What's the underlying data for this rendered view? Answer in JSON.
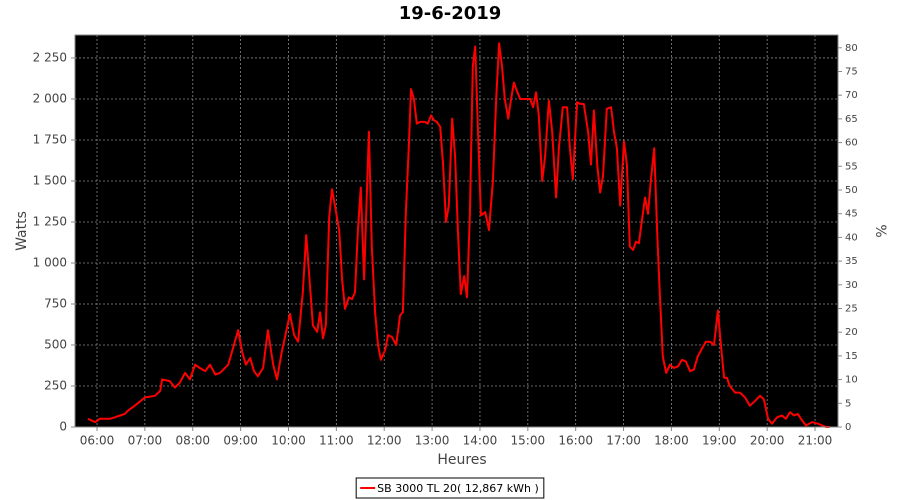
{
  "chart_data": {
    "type": "line",
    "title": "19-6-2019",
    "x_label": "Heures",
    "y_label": "Watts",
    "y2_label": "%",
    "xlim": [
      5.54,
      21.48
    ],
    "ylim": [
      0,
      2390
    ],
    "y2lim": [
      0,
      82.7
    ],
    "xticks": [
      {
        "value": 6,
        "label": "06:00"
      },
      {
        "value": 7,
        "label": "07:00"
      },
      {
        "value": 8,
        "label": "08:00"
      },
      {
        "value": 9,
        "label": "09:00"
      },
      {
        "value": 10,
        "label": "10:00"
      },
      {
        "value": 11,
        "label": "11:00"
      },
      {
        "value": 12,
        "label": "12:00"
      },
      {
        "value": 13,
        "label": "13:00"
      },
      {
        "value": 14,
        "label": "14:00"
      },
      {
        "value": 15,
        "label": "15:00"
      },
      {
        "value": 16,
        "label": "16:00"
      },
      {
        "value": 17,
        "label": "17:00"
      },
      {
        "value": 18,
        "label": "18:00"
      },
      {
        "value": 19,
        "label": "19:00"
      },
      {
        "value": 20,
        "label": "20:00"
      },
      {
        "value": 21,
        "label": "21:00"
      }
    ],
    "yticks": [
      0,
      250,
      500,
      750,
      {
        "value": 1000,
        "label": "1 000"
      },
      {
        "value": 1250,
        "label": "1 250"
      },
      {
        "value": 1500,
        "label": "1 500"
      },
      {
        "value": 1750,
        "label": "1 750"
      },
      {
        "value": 2000,
        "label": "2 000"
      },
      {
        "value": 2250,
        "label": "2 250"
      }
    ],
    "y2ticks": [
      0,
      5,
      10,
      15,
      20,
      25,
      30,
      35,
      40,
      45,
      50,
      55,
      60,
      65,
      70,
      75,
      80
    ],
    "grid": true,
    "background": "#000000",
    "legend": "bottom",
    "x": [
      5.81,
      5.96,
      6.06,
      6.27,
      6.38,
      6.48,
      6.58,
      6.65,
      6.79,
      7.0,
      7.21,
      7.32,
      7.36,
      7.52,
      7.63,
      7.73,
      7.84,
      7.94,
      8.05,
      8.15,
      8.26,
      8.36,
      8.47,
      8.57,
      8.74,
      8.84,
      8.95,
      9.03,
      9.11,
      9.2,
      9.28,
      9.36,
      9.47,
      9.57,
      9.68,
      9.76,
      9.86,
      9.93,
      10.03,
      10.12,
      10.2,
      10.3,
      10.37,
      10.45,
      10.51,
      10.6,
      10.66,
      10.72,
      10.78,
      10.85,
      10.91,
      10.97,
      11.06,
      11.12,
      11.18,
      11.26,
      11.33,
      11.39,
      11.45,
      11.51,
      11.58,
      11.64,
      11.68,
      11.74,
      11.81,
      11.87,
      11.93,
      12.02,
      12.08,
      12.16,
      12.25,
      12.33,
      12.39,
      12.45,
      12.52,
      12.56,
      12.62,
      12.68,
      12.75,
      12.85,
      12.91,
      12.98,
      13.04,
      13.1,
      13.17,
      13.23,
      13.29,
      13.35,
      13.42,
      13.48,
      13.54,
      13.6,
      13.67,
      13.73,
      13.79,
      13.85,
      13.9,
      13.96,
      14.02,
      14.11,
      14.19,
      14.27,
      14.34,
      14.4,
      14.46,
      14.52,
      14.59,
      14.65,
      14.71,
      14.77,
      14.84,
      14.94,
      15.05,
      15.11,
      15.17,
      15.23,
      15.3,
      15.36,
      15.44,
      15.51,
      15.59,
      15.65,
      15.73,
      15.82,
      15.88,
      15.94,
      16.03,
      16.09,
      16.17,
      16.26,
      16.32,
      16.38,
      16.45,
      16.51,
      16.57,
      16.65,
      16.74,
      16.8,
      16.86,
      16.93,
      17.01,
      17.07,
      17.13,
      17.2,
      17.26,
      17.32,
      17.38,
      17.45,
      17.51,
      17.57,
      17.64,
      17.7,
      17.76,
      17.82,
      17.89,
      17.97,
      18.05,
      18.14,
      18.22,
      18.3,
      18.39,
      18.47,
      18.55,
      18.64,
      18.72,
      18.81,
      18.89,
      18.97,
      19.04,
      19.1,
      19.16,
      19.22,
      19.33,
      19.43,
      19.54,
      19.64,
      19.75,
      19.85,
      19.93,
      20.02,
      20.1,
      20.21,
      20.31,
      20.39,
      20.48,
      20.56,
      20.64,
      20.73,
      20.81,
      20.94,
      21.06,
      21.23,
      21.31
    ],
    "series": [
      {
        "name": "SB 3000 TL 20( 12,867 kWh )",
        "color": "#ff0000",
        "values": [
          50,
          30,
          50,
          50,
          60,
          70,
          80,
          100,
          130,
          180,
          190,
          220,
          290,
          280,
          240,
          270,
          330,
          290,
          380,
          360,
          340,
          380,
          320,
          330,
          380,
          480,
          590,
          460,
          380,
          420,
          340,
          310,
          360,
          590,
          380,
          290,
          460,
          550,
          690,
          560,
          520,
          820,
          1170,
          860,
          620,
          580,
          700,
          540,
          620,
          1280,
          1450,
          1350,
          1200,
          900,
          720,
          790,
          780,
          820,
          1200,
          1460,
          900,
          1450,
          1800,
          1100,
          700,
          500,
          410,
          470,
          560,
          550,
          500,
          680,
          700,
          1300,
          1750,
          2060,
          2000,
          1850,
          1860,
          1860,
          1850,
          1900,
          1870,
          1860,
          1830,
          1600,
          1250,
          1350,
          1880,
          1650,
          1200,
          810,
          920,
          790,
          1300,
          2200,
          2320,
          1800,
          1290,
          1310,
          1200,
          1500,
          2000,
          2340,
          2200,
          2000,
          1880,
          2000,
          2100,
          2050,
          2000,
          2000,
          2000,
          1950,
          2040,
          1900,
          1500,
          1650,
          1990,
          1800,
          1400,
          1700,
          1950,
          1950,
          1700,
          1510,
          1980,
          1970,
          1970,
          1800,
          1600,
          1930,
          1600,
          1430,
          1530,
          1940,
          1950,
          1800,
          1700,
          1350,
          1740,
          1600,
          1100,
          1080,
          1130,
          1120,
          1250,
          1400,
          1300,
          1500,
          1700,
          1200,
          800,
          430,
          330,
          380,
          360,
          370,
          410,
          400,
          340,
          350,
          430,
          480,
          520,
          520,
          500,
          710,
          480,
          300,
          300,
          250,
          210,
          210,
          180,
          130,
          160,
          190,
          170,
          50,
          20,
          60,
          70,
          50,
          90,
          70,
          80,
          40,
          10,
          30,
          20,
          0,
          0
        ]
      }
    ]
  }
}
